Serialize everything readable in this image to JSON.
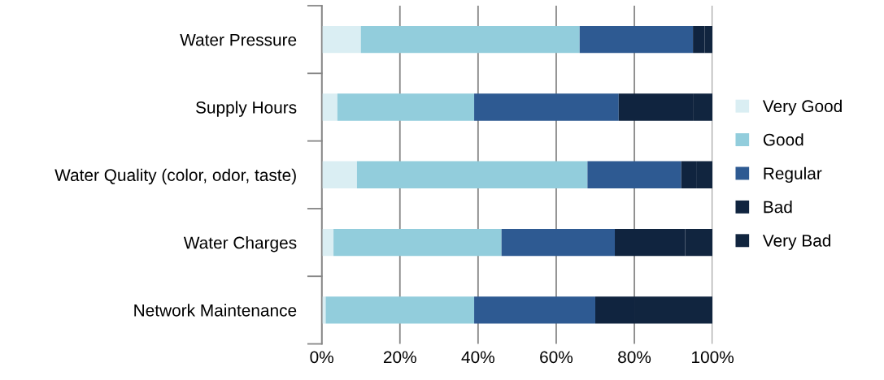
{
  "chart_data": {
    "type": "bar",
    "orientation": "horizontal",
    "stacked": true,
    "categories": [
      "Water Pressure",
      "Supply Hours",
      "Water Quality (color, odor, taste)",
      "Water Charges",
      "Network Maintenance"
    ],
    "series": [
      {
        "name": "Very Good",
        "color": "#daeef3",
        "values": [
          10,
          4,
          9,
          3,
          1
        ]
      },
      {
        "name": "Good",
        "color": "#92cddc",
        "values": [
          56,
          35,
          59,
          43,
          38
        ]
      },
      {
        "name": "Regular",
        "color": "#2e5a92",
        "values": [
          29,
          37,
          24,
          29,
          31
        ]
      },
      {
        "name": "Bad",
        "color": "#10243f",
        "values": [
          3,
          19,
          4,
          18,
          10
        ]
      },
      {
        "name": "Very Bad",
        "color": "#11253f",
        "values": [
          2,
          5,
          4,
          7,
          20
        ]
      }
    ],
    "xlim": [
      0,
      100
    ],
    "xticks": [
      {
        "value": 0,
        "label": "0%"
      },
      {
        "value": 20,
        "label": "20%"
      },
      {
        "value": 40,
        "label": "40%"
      },
      {
        "value": 60,
        "label": "60%"
      },
      {
        "value": 80,
        "label": "80%"
      },
      {
        "value": 100,
        "label": "100%"
      }
    ],
    "grid": "x",
    "legend": "right"
  }
}
